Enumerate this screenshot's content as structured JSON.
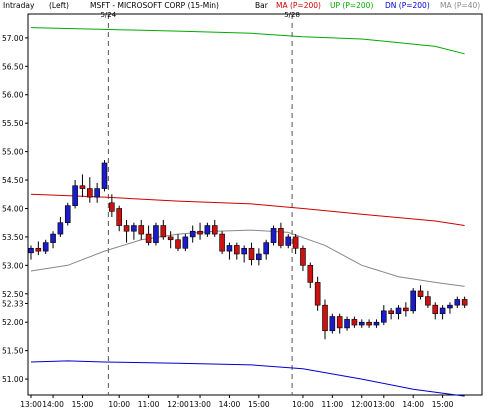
{
  "header": {
    "mode": "Intraday",
    "axis_side": "(Left)",
    "title": "MSFT - MICROSOFT CORP  (15-Min)",
    "bar_type": "Bar",
    "legend": [
      {
        "label": "MA (P=200)",
        "color": "#cc0000"
      },
      {
        "label": "UP (P=200)",
        "color": "#00aa00"
      },
      {
        "label": "DN (P=200)",
        "color": "#0000cc"
      },
      {
        "label": "MA (P=40)",
        "color": "#888888"
      }
    ]
  },
  "chart_data": {
    "type": "candlestick",
    "title": "MSFT - MICROSOFT CORP  (15-Min)",
    "y_ticks": [
      "57.00",
      "56.50",
      "56.00",
      "55.50",
      "55.00",
      "54.50",
      "54.00",
      "53.50",
      "53.00",
      "52.50",
      "52.33",
      "52.00",
      "51.50",
      "51.00"
    ],
    "ylim": [
      50.72,
      57.42
    ],
    "date_markers": [
      {
        "label": "5/24",
        "x_index": 11
      },
      {
        "label": "5/28",
        "x_index": 36
      }
    ],
    "x_ticks": [
      {
        "label": "13:00",
        "x_index": 0
      },
      {
        "label": "14:00",
        "x_index": 3
      },
      {
        "label": "15:00",
        "x_index": 7
      },
      {
        "label": "10:00",
        "x_index": 12
      },
      {
        "label": "11:00",
        "x_index": 16
      },
      {
        "label": "12:00",
        "x_index": 20
      },
      {
        "label": "13:00",
        "x_index": 23
      },
      {
        "label": "14:00",
        "x_index": 27
      },
      {
        "label": "15:00",
        "x_index": 31
      },
      {
        "label": "10:00",
        "x_index": 37
      },
      {
        "label": "11:00",
        "x_index": 41
      },
      {
        "label": "12:00",
        "x_index": 45
      },
      {
        "label": "13:00",
        "x_index": 48
      },
      {
        "label": "14:00",
        "x_index": 52
      },
      {
        "label": "15:00",
        "x_index": 56
      }
    ],
    "candles": [
      [
        53.22,
        53.35,
        53.1,
        53.3
      ],
      [
        53.3,
        53.42,
        53.18,
        53.25
      ],
      [
        53.25,
        53.45,
        53.2,
        53.4
      ],
      [
        53.4,
        53.6,
        53.3,
        53.55
      ],
      [
        53.55,
        53.85,
        53.5,
        53.75
      ],
      [
        53.75,
        54.1,
        53.7,
        54.05
      ],
      [
        54.05,
        54.5,
        54.0,
        54.4
      ],
      [
        54.4,
        54.6,
        54.2,
        54.35
      ],
      [
        54.35,
        54.55,
        54.1,
        54.2
      ],
      [
        54.2,
        54.45,
        54.1,
        54.35
      ],
      [
        54.35,
        54.85,
        54.3,
        54.8
      ],
      [
        54.1,
        54.25,
        53.85,
        53.95
      ],
      [
        54.0,
        54.05,
        53.6,
        53.7
      ],
      [
        53.7,
        53.8,
        53.4,
        53.6
      ],
      [
        53.6,
        53.75,
        53.45,
        53.7
      ],
      [
        53.7,
        53.8,
        53.45,
        53.55
      ],
      [
        53.55,
        53.7,
        53.35,
        53.4
      ],
      [
        53.4,
        53.75,
        53.35,
        53.7
      ],
      [
        53.7,
        53.8,
        53.45,
        53.5
      ],
      [
        53.5,
        53.6,
        53.3,
        53.45
      ],
      [
        53.45,
        53.55,
        53.25,
        53.3
      ],
      [
        53.3,
        53.55,
        53.25,
        53.5
      ],
      [
        53.5,
        53.7,
        53.4,
        53.6
      ],
      [
        53.6,
        53.75,
        53.45,
        53.55
      ],
      [
        53.55,
        53.75,
        53.5,
        53.7
      ],
      [
        53.7,
        53.8,
        53.5,
        53.55
      ],
      [
        53.55,
        53.6,
        53.2,
        53.25
      ],
      [
        53.25,
        53.4,
        53.1,
        53.35
      ],
      [
        53.35,
        53.4,
        53.1,
        53.2
      ],
      [
        53.2,
        53.35,
        53.05,
        53.3
      ],
      [
        53.3,
        53.4,
        53.0,
        53.1
      ],
      [
        53.1,
        53.3,
        53.0,
        53.2
      ],
      [
        53.2,
        53.45,
        53.1,
        53.4
      ],
      [
        53.4,
        53.7,
        53.35,
        53.65
      ],
      [
        53.65,
        53.75,
        53.3,
        53.35
      ],
      [
        53.35,
        53.55,
        53.3,
        53.5
      ],
      [
        53.5,
        53.55,
        53.2,
        53.3
      ],
      [
        53.3,
        53.35,
        52.9,
        53.0
      ],
      [
        53.0,
        53.05,
        52.6,
        52.7
      ],
      [
        52.7,
        52.8,
        52.2,
        52.3
      ],
      [
        52.3,
        52.4,
        51.7,
        51.85
      ],
      [
        51.85,
        52.15,
        51.8,
        52.1
      ],
      [
        52.1,
        52.15,
        51.8,
        51.9
      ],
      [
        51.9,
        52.1,
        51.85,
        52.05
      ],
      [
        52.05,
        52.1,
        51.9,
        51.95
      ],
      [
        51.95,
        52.05,
        51.9,
        52.0
      ],
      [
        52.0,
        52.05,
        51.9,
        51.95
      ],
      [
        51.95,
        52.05,
        51.9,
        52.0
      ],
      [
        52.0,
        52.3,
        51.95,
        52.2
      ],
      [
        52.2,
        52.25,
        52.05,
        52.15
      ],
      [
        52.15,
        52.3,
        52.05,
        52.25
      ],
      [
        52.25,
        52.35,
        52.1,
        52.2
      ],
      [
        52.2,
        52.6,
        52.15,
        52.55
      ],
      [
        52.55,
        52.65,
        52.4,
        52.45
      ],
      [
        52.45,
        52.55,
        52.25,
        52.3
      ],
      [
        52.3,
        52.35,
        52.05,
        52.15
      ],
      [
        52.15,
        52.3,
        52.05,
        52.25
      ],
      [
        52.25,
        52.35,
        52.15,
        52.3
      ],
      [
        52.3,
        52.45,
        52.25,
        52.4
      ],
      [
        52.4,
        52.45,
        52.25,
        52.3
      ]
    ],
    "series": [
      {
        "name": "MA (P=200)",
        "color": "#cc0000",
        "values": [
          [
            0,
            54.25
          ],
          [
            10,
            54.2
          ],
          [
            20,
            54.13
          ],
          [
            30,
            54.08
          ],
          [
            37,
            54.0
          ],
          [
            45,
            53.9
          ],
          [
            55,
            53.78
          ],
          [
            59,
            53.7
          ]
        ]
      },
      {
        "name": "UP (P=200)",
        "color": "#00aa00",
        "values": [
          [
            0,
            57.18
          ],
          [
            10,
            57.15
          ],
          [
            20,
            57.12
          ],
          [
            30,
            57.08
          ],
          [
            37,
            57.02
          ],
          [
            45,
            56.98
          ],
          [
            55,
            56.85
          ],
          [
            59,
            56.72
          ]
        ]
      },
      {
        "name": "DN (P=200)",
        "color": "#0000cc",
        "values": [
          [
            0,
            51.3
          ],
          [
            5,
            51.32
          ],
          [
            10,
            51.3
          ],
          [
            20,
            51.28
          ],
          [
            30,
            51.25
          ],
          [
            37,
            51.18
          ],
          [
            45,
            51.0
          ],
          [
            52,
            50.82
          ],
          [
            59,
            50.7
          ]
        ]
      },
      {
        "name": "MA (P=40)",
        "color": "#888888",
        "values": [
          [
            0,
            52.9
          ],
          [
            5,
            53.0
          ],
          [
            10,
            53.25
          ],
          [
            15,
            53.45
          ],
          [
            20,
            53.55
          ],
          [
            25,
            53.6
          ],
          [
            30,
            53.62
          ],
          [
            35,
            53.58
          ],
          [
            40,
            53.35
          ],
          [
            45,
            53.0
          ],
          [
            50,
            52.8
          ],
          [
            55,
            52.7
          ],
          [
            59,
            52.63
          ]
        ]
      }
    ]
  }
}
